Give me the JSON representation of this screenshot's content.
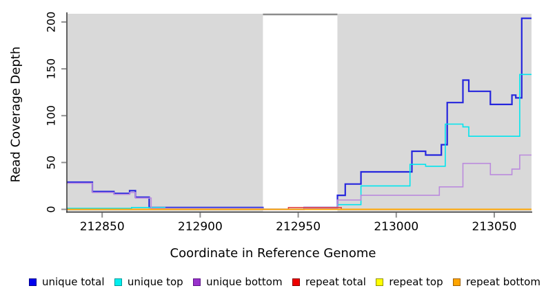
{
  "chart_data": {
    "type": "line",
    "subtype": "step-coverage-plot",
    "title": "",
    "xlabel": "Coordinate in Reference Genome",
    "ylabel": "Read Coverage Depth",
    "xlim": [
      212832,
      213069
    ],
    "ylim": [
      0,
      208
    ],
    "x_ticks": [
      212850,
      212900,
      212950,
      213000,
      213050
    ],
    "y_ticks": [
      0,
      50,
      100,
      150,
      200
    ],
    "grid": false,
    "plot_background": "#d9d9d9",
    "axis_color": "#2b2b2b",
    "tick_color": "#8f8f8f",
    "mask_band": {
      "x_start": 212932,
      "x_end": 212970,
      "fill": "#ffffff",
      "top_border": "#8c8c8c"
    },
    "legend_position": "bottom",
    "series": [
      {
        "name": "unique total",
        "color": "#2525dd",
        "swatch": "#0000ee",
        "swatch_border": "#000088",
        "lw": 2.2,
        "points": [
          [
            212832,
            29
          ],
          [
            212845,
            19
          ],
          [
            212856,
            17
          ],
          [
            212864,
            20
          ],
          [
            212867,
            13
          ],
          [
            212874,
            2
          ],
          [
            212932,
            0
          ],
          [
            212953,
            2
          ],
          [
            212970,
            15
          ],
          [
            212974,
            27
          ],
          [
            212982,
            40
          ],
          [
            213008,
            62
          ],
          [
            213015,
            58
          ],
          [
            213023,
            69
          ],
          [
            213026,
            114
          ],
          [
            213034,
            138
          ],
          [
            213037,
            126
          ],
          [
            213048,
            112
          ],
          [
            213059,
            122
          ],
          [
            213061,
            119
          ],
          [
            213064,
            204
          ],
          [
            213069,
            204
          ]
        ]
      },
      {
        "name": "unique top",
        "color": "#00e5ee",
        "swatch": "#00eeee",
        "swatch_border": "#009999",
        "lw": 1.6,
        "points": [
          [
            212832,
            1
          ],
          [
            212865,
            2
          ],
          [
            212882,
            1
          ],
          [
            212932,
            0
          ],
          [
            212970,
            5
          ],
          [
            212982,
            25
          ],
          [
            213007,
            48
          ],
          [
            213015,
            46
          ],
          [
            213025,
            91
          ],
          [
            213034,
            88
          ],
          [
            213037,
            78
          ],
          [
            213063,
            144
          ],
          [
            213069,
            144
          ]
        ]
      },
      {
        "name": "unique bottom",
        "color": "#bb8add",
        "swatch": "#9932cc",
        "swatch_border": "#5e1387",
        "lw": 1.6,
        "points": [
          [
            212832,
            28
          ],
          [
            212845,
            18
          ],
          [
            212856,
            16
          ],
          [
            212864,
            18
          ],
          [
            212867,
            12
          ],
          [
            212875,
            1
          ],
          [
            212932,
            0
          ],
          [
            212953,
            1
          ],
          [
            212970,
            10
          ],
          [
            212982,
            15
          ],
          [
            213022,
            24
          ],
          [
            213034,
            49
          ],
          [
            213048,
            37
          ],
          [
            213059,
            43
          ],
          [
            213063,
            58
          ],
          [
            213069,
            58
          ]
        ]
      },
      {
        "name": "repeat total",
        "color": "#e04545",
        "swatch": "#ee0000",
        "swatch_border": "#880000",
        "lw": 1.6,
        "points": [
          [
            212832,
            0
          ],
          [
            212945,
            2
          ],
          [
            212972,
            0
          ],
          [
            213069,
            0
          ]
        ]
      },
      {
        "name": "repeat top",
        "color": "#f5f500",
        "swatch": "#ffff00",
        "swatch_border": "#909000",
        "lw": 1.6,
        "points": [
          [
            212832,
            0
          ],
          [
            213069,
            0
          ]
        ]
      },
      {
        "name": "repeat bottom",
        "color": "#ffa500",
        "swatch": "#ffa500",
        "swatch_border": "#a06000",
        "lw": 2.0,
        "points": [
          [
            212832,
            0
          ],
          [
            213069,
            0
          ]
        ]
      }
    ]
  }
}
